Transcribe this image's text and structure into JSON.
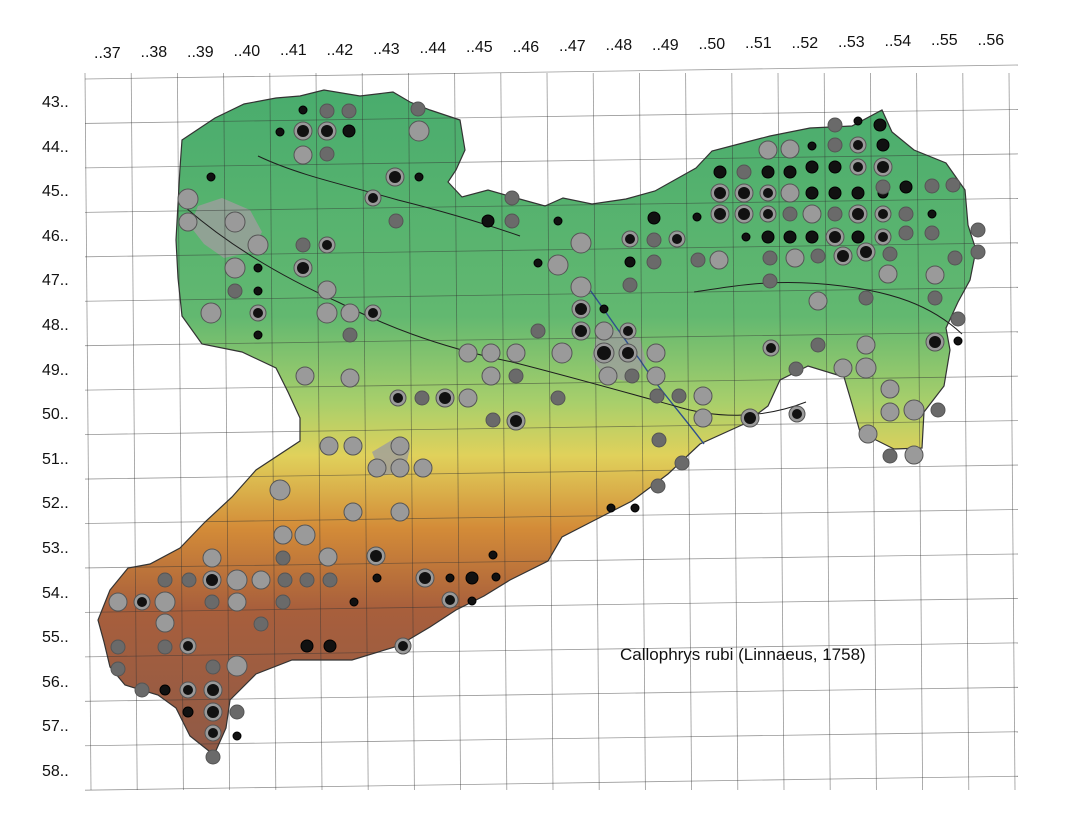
{
  "map": {
    "species": "Callophrys rubi (Linnaeus, 1758)",
    "column_labels": [
      "..37",
      "..38",
      "..39",
      "..40",
      "..41",
      "..42",
      "..43",
      "..44",
      "..45",
      "..46",
      "..47",
      "..48",
      "..49",
      "..50",
      "..51",
      "..52",
      "..53",
      "..54",
      "..55",
      "..56"
    ],
    "row_labels": [
      "43..",
      "44..",
      "45..",
      "46..",
      "47..",
      "48..",
      "49..",
      "50..",
      "51..",
      "52..",
      "53..",
      "54..",
      "55..",
      "56..",
      "57..",
      "58.."
    ],
    "colors": {
      "lowland": "#6dbe7b",
      "north_plain": "#4caf6a",
      "hills": "#d9cf62",
      "uplands": "#d48b3e",
      "mountains": "#a5583a",
      "urban": "#9e9e9e",
      "grid": "#333333",
      "marker_light": "#9a9a9a",
      "marker_dark": "#6a6a6a",
      "marker_black": "#111111"
    }
  }
}
